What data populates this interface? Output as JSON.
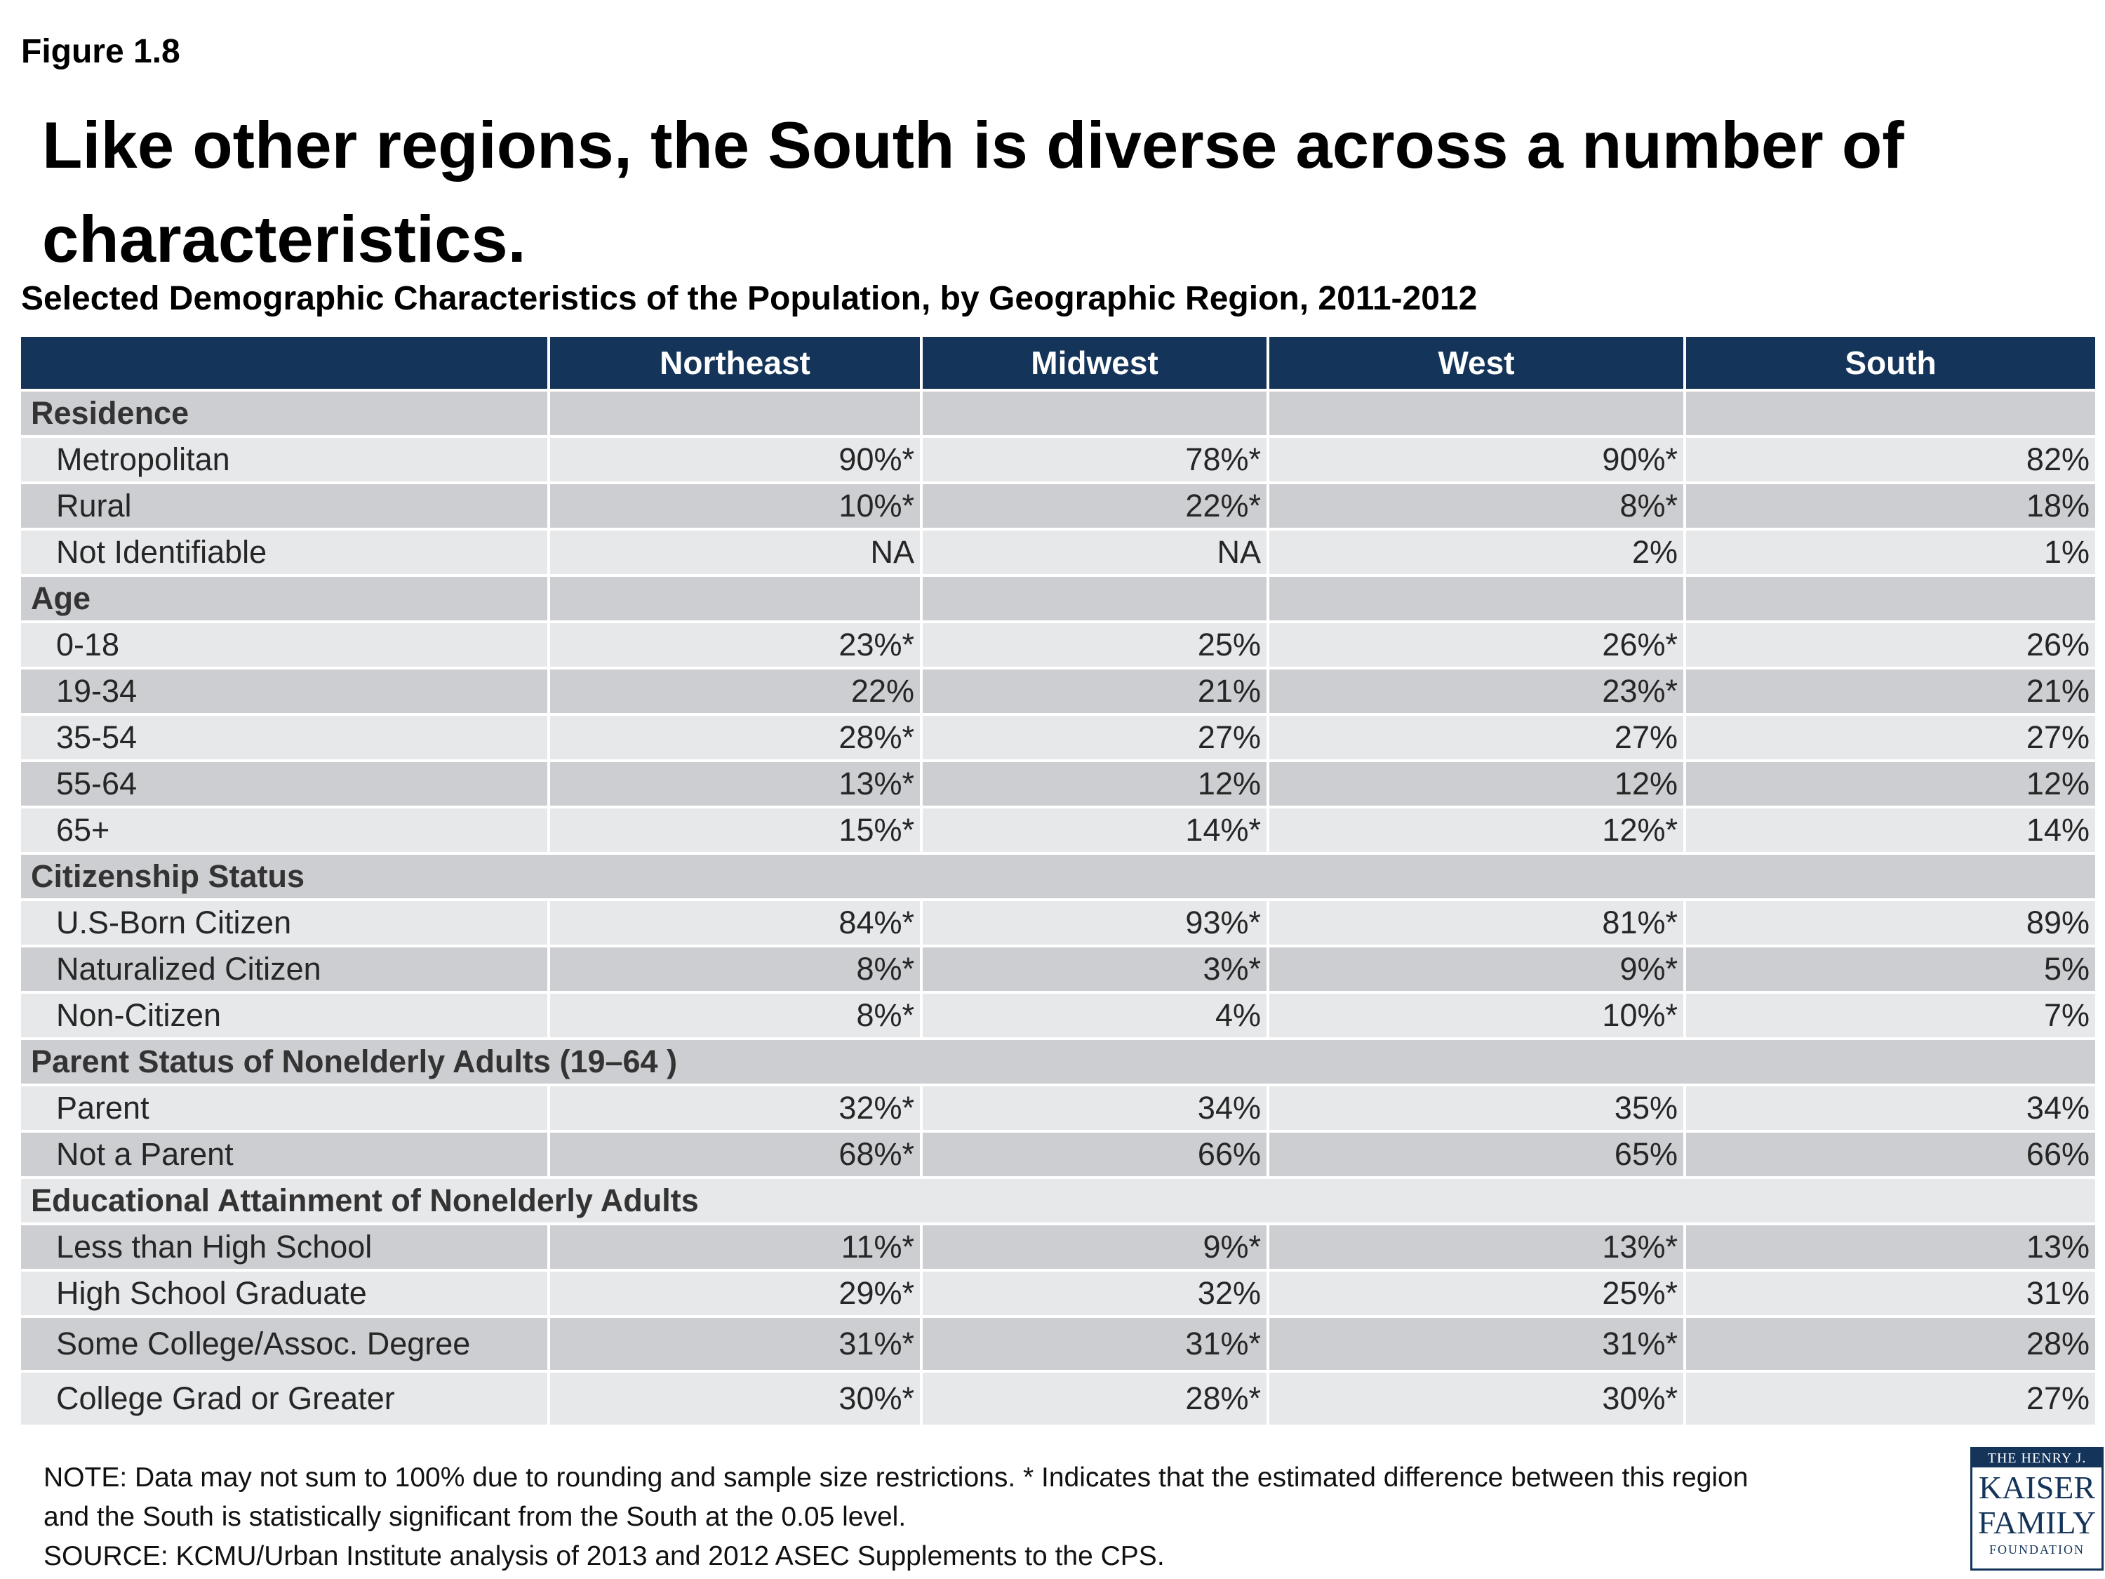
{
  "figure_label": "Figure 1.8",
  "headline_line1": "Like other regions, the South is diverse across a number of",
  "headline_line2": "characteristics.",
  "subtitle": "Selected Demographic Characteristics of the Population, by Geographic Region, 2011-2012",
  "columns": [
    "",
    "Northeast",
    "Midwest",
    "West",
    "South"
  ],
  "rows": [
    {
      "type": "section",
      "label": "Residence",
      "values": [
        "",
        "",
        "",
        ""
      ]
    },
    {
      "type": "item",
      "label": "Metropolitan",
      "values": [
        "90%*",
        "78%*",
        "90%*",
        "82%"
      ]
    },
    {
      "type": "item",
      "label": "Rural",
      "values": [
        "10%*",
        "22%*",
        "8%*",
        "18%"
      ]
    },
    {
      "type": "item",
      "label": "Not Identifiable",
      "values": [
        "NA",
        "NA",
        "2%",
        "1%"
      ]
    },
    {
      "type": "section",
      "label": "Age",
      "values": [
        "",
        "",
        "",
        ""
      ]
    },
    {
      "type": "item",
      "label": "0-18",
      "values": [
        "23%*",
        "25%",
        "26%*",
        "26%"
      ]
    },
    {
      "type": "item",
      "label": "19-34",
      "values": [
        "22%",
        "21%",
        "23%*",
        "21%"
      ]
    },
    {
      "type": "item",
      "label": "35-54",
      "values": [
        "28%*",
        "27%",
        "27%",
        "27%"
      ]
    },
    {
      "type": "item",
      "label": "55-64",
      "values": [
        "13%*",
        "12%",
        "12%",
        "12%"
      ]
    },
    {
      "type": "item",
      "label": "65+",
      "values": [
        "15%*",
        "14%*",
        "12%*",
        "14%"
      ]
    },
    {
      "type": "section-span",
      "label": "Citizenship Status"
    },
    {
      "type": "item",
      "label": "U.S-Born Citizen",
      "values": [
        "84%*",
        "93%*",
        "81%*",
        "89%"
      ]
    },
    {
      "type": "item",
      "label": "Naturalized Citizen",
      "values": [
        "8%*",
        "3%*",
        "9%*",
        "5%"
      ]
    },
    {
      "type": "item",
      "label": "Non-Citizen",
      "values": [
        "8%*",
        "4%",
        "10%*",
        "7%"
      ]
    },
    {
      "type": "section-span",
      "label": "Parent Status of Nonelderly Adults (19–64 )"
    },
    {
      "type": "item",
      "label": "Parent",
      "values": [
        "32%*",
        "34%",
        "35%",
        "34%"
      ]
    },
    {
      "type": "item",
      "label": "Not a Parent",
      "values": [
        "68%*",
        "66%",
        "65%",
        "66%"
      ]
    },
    {
      "type": "section-span",
      "label": "Educational Attainment of Nonelderly Adults"
    },
    {
      "type": "item",
      "label": "Less than High School",
      "values": [
        "11%*",
        "9%*",
        "13%*",
        "13%"
      ]
    },
    {
      "type": "item",
      "label": "High School Graduate",
      "values": [
        "29%*",
        "32%",
        "25%*",
        "31%"
      ]
    },
    {
      "type": "item",
      "tall": true,
      "label": "Some College/Assoc. Degree",
      "values": [
        "31%*",
        "31%*",
        "31%*",
        "28%"
      ]
    },
    {
      "type": "item",
      "tall": true,
      "label": "College Grad or Greater",
      "values": [
        "30%*",
        "28%*",
        "30%*",
        "27%"
      ]
    }
  ],
  "note_line1": "NOTE: Data may not sum to 100% due to rounding and sample size restrictions. * Indicates that the estimated difference between this region",
  "note_line2": "and the South is statistically significant from the South at the 0.05 level.",
  "source_line": "SOURCE: KCMU/Urban Institute analysis of 2013 and 2012 ASEC Supplements to the CPS.",
  "logo": {
    "line1": "THE HENRY J.",
    "line2": "KAISER",
    "line3": "FAMILY",
    "line4": "FOUNDATION"
  },
  "colors": {
    "header_bg": "#14345a",
    "row_dark": "#cdced2",
    "row_light": "#e7e8ea"
  }
}
